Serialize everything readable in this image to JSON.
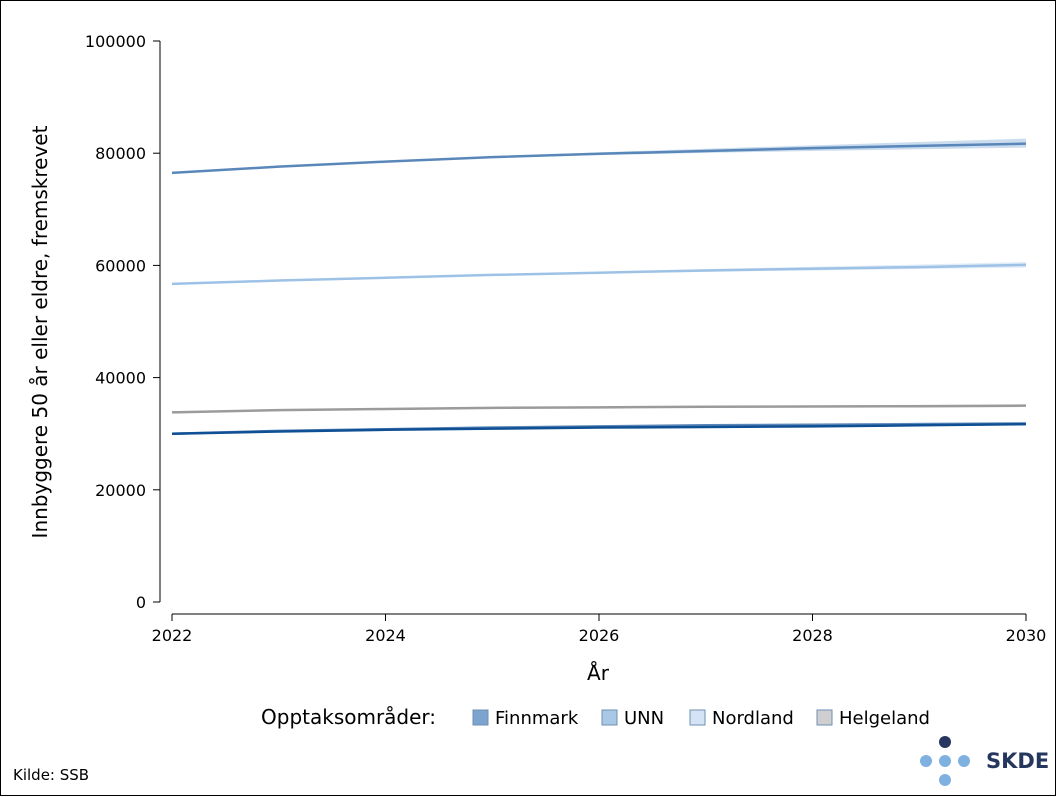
{
  "chart_data": {
    "type": "line",
    "title": "",
    "xlabel": "År",
    "ylabel": "Innbyggere 50 år eller eldre, fremskrevet",
    "xlim": [
      2022,
      2030
    ],
    "ylim": [
      0,
      100000
    ],
    "x_ticks": [
      2022,
      2024,
      2026,
      2028,
      2030
    ],
    "y_ticks": [
      0,
      20000,
      40000,
      60000,
      80000,
      100000
    ],
    "x_tick_labels": [
      "2022",
      "2024",
      "2026",
      "2028",
      "2030"
    ],
    "y_tick_labels": [
      "0",
      "20000",
      "40000",
      "60000",
      "80000",
      "100000"
    ],
    "grid": false,
    "x": [
      2022,
      2023,
      2024,
      2025,
      2026,
      2027,
      2028,
      2029,
      2030
    ],
    "series": [
      {
        "name": "Finnmark",
        "color": "#5b86b8",
        "band_color": "#8fb0d6",
        "values": [
          30000,
          30500,
          30800,
          31100,
          31300,
          31500,
          31600,
          31700,
          31800
        ],
        "low": [
          30000,
          30500,
          30800,
          31050,
          31200,
          31350,
          31400,
          31450,
          31500
        ],
        "high": [
          30000,
          30500,
          30850,
          31150,
          31400,
          31650,
          31800,
          31950,
          32100
        ]
      },
      {
        "name": "UNN",
        "color": "#5a87ba",
        "band_color": "#9fbfe0",
        "values": [
          76500,
          77600,
          78500,
          79300,
          79900,
          80400,
          80900,
          81300,
          81700
        ],
        "low": [
          76500,
          77600,
          78450,
          79150,
          79650,
          80050,
          80400,
          80700,
          81000
        ],
        "high": [
          76500,
          77600,
          78550,
          79450,
          80150,
          80800,
          81400,
          82000,
          82600
        ]
      },
      {
        "name": "Nordland",
        "color": "#9dc2e6",
        "band_color": "#c9dcf2",
        "values": [
          56700,
          57300,
          57800,
          58300,
          58700,
          59100,
          59400,
          59700,
          60100
        ],
        "low": [
          56700,
          57300,
          57750,
          58200,
          58550,
          58850,
          59100,
          59350,
          59600
        ],
        "high": [
          56700,
          57300,
          57850,
          58400,
          58850,
          59350,
          59750,
          60150,
          60600
        ]
      },
      {
        "name": "Helgeland",
        "color": "#9b9b9b",
        "band_color": "#cfcfcf",
        "values": [
          33800,
          34200,
          34400,
          34600,
          34700,
          34800,
          34850,
          34900,
          35000
        ],
        "low": [
          33800,
          34200,
          34350,
          34500,
          34600,
          34650,
          34700,
          34700,
          34750
        ],
        "high": [
          33800,
          34200,
          34450,
          34700,
          34800,
          34950,
          35050,
          35150,
          35250
        ]
      },
      {
        "name": "",
        "color": "#0f4f94",
        "band_color": "#5b86b8",
        "values": [
          30000,
          30400,
          30700,
          30900,
          31100,
          31200,
          31300,
          31500,
          31700
        ],
        "low": [
          30000,
          30400,
          30700,
          30900,
          31050,
          31150,
          31250,
          31350,
          31500
        ],
        "high": [
          30000,
          30400,
          30700,
          30950,
          31150,
          31300,
          31400,
          31650,
          31900
        ]
      }
    ],
    "legend": {
      "title": "Opptaksområder:",
      "placement": "bottom",
      "entries": [
        {
          "label": "Finnmark",
          "color": "#7da4cf"
        },
        {
          "label": "UNN",
          "color": "#a9c8e6"
        },
        {
          "label": "Nordland",
          "color": "#d4e4f6"
        },
        {
          "label": "Helgeland",
          "color": "#cfcfcf"
        }
      ]
    }
  },
  "source_note": "Kilde: SSB",
  "logo": {
    "text": "SKDE",
    "dot_dark": "#25365f",
    "dot_light": "#7eb0e0"
  }
}
